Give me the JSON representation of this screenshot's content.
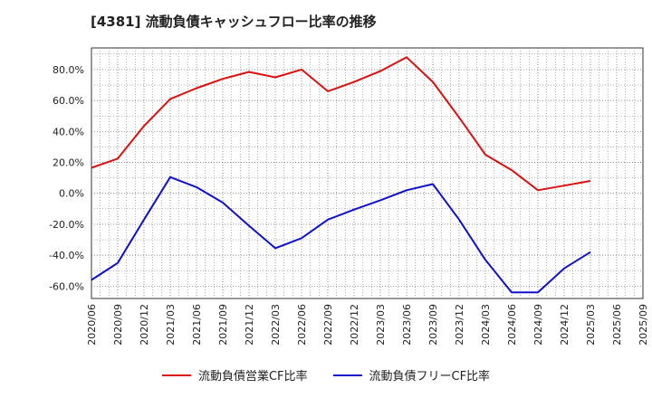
{
  "title": "[4381]  流動負債キャッシュフロー比率の推移",
  "chart_data": {
    "type": "line",
    "x": [
      "2020/06",
      "2020/09",
      "2020/12",
      "2021/03",
      "2021/06",
      "2021/09",
      "2021/12",
      "2022/03",
      "2022/06",
      "2022/09",
      "2022/12",
      "2023/03",
      "2023/06",
      "2023/09",
      "2023/12",
      "2024/03",
      "2024/06",
      "2024/09",
      "2024/12",
      "2025/03",
      "2025/06",
      "2025/09"
    ],
    "tick_labels": [
      "2020/06",
      "2020/09",
      "2020/12",
      "2021/03",
      "2021/06",
      "2021/09",
      "2021/12",
      "2022/03",
      "2022/06",
      "2022/09",
      "2022/12",
      "2023/03",
      "2023/06",
      "2023/09",
      "2023/12",
      "2024/03",
      "2024/06",
      "2024/09",
      "2024/12",
      "2025/03",
      "2025/06",
      "2025/09"
    ],
    "y_ticks": [
      "80.0%",
      "60.0%",
      "40.0%",
      "20.0%",
      "0.0%",
      "-20.0%",
      "-40.0%",
      "-60.0%"
    ],
    "y_tick_values": [
      80,
      60,
      40,
      20,
      0,
      -20,
      -40,
      -60
    ],
    "ylim": [
      -68,
      94
    ],
    "grid": true,
    "legend_position": "bottom",
    "series": [
      {
        "name": "流動負債営業CF比率",
        "color": "#dd1111",
        "values": [
          16.5,
          22.5,
          43.5,
          61,
          68,
          74,
          78.5,
          75,
          80,
          66,
          72,
          79,
          88,
          72,
          49,
          25,
          15,
          2,
          5,
          8,
          null,
          null
        ]
      },
      {
        "name": "流動負債フリーCF比率",
        "color": "#1111cc",
        "values": [
          -56,
          -45,
          -17,
          10.5,
          4,
          -6,
          -21,
          -35.5,
          -29,
          -17,
          -10.5,
          -4.5,
          2,
          6,
          -17,
          -43,
          -64,
          -64,
          -48.5,
          -38,
          null,
          null
        ]
      }
    ]
  }
}
